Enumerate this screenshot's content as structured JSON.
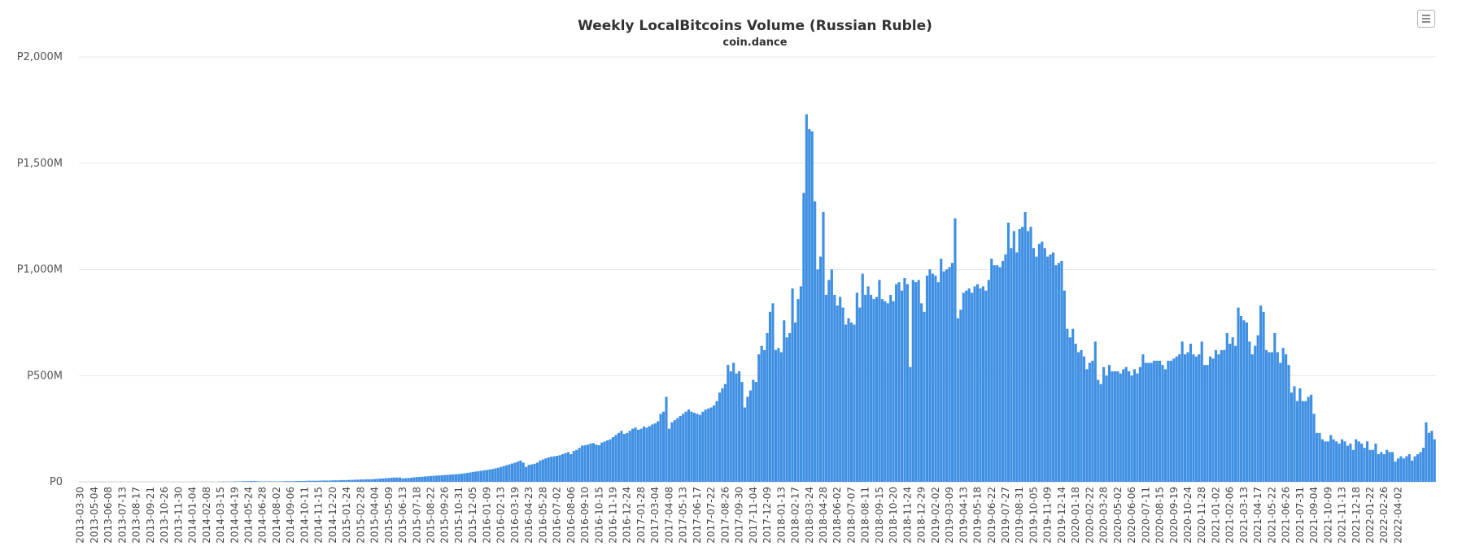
{
  "menu_icon": "hamburger-menu-icon",
  "colors": {
    "bar": "#3f8fe3",
    "bar_stroke": "#2f78c8",
    "grid": "#e6e6e6",
    "axis_text": "#555555"
  },
  "chart_data": {
    "type": "bar",
    "title": "Weekly LocalBitcoins Volume (Russian Ruble)",
    "subtitle": "coin.dance",
    "xlabel": "",
    "ylabel": "",
    "ylim": [
      0,
      2000
    ],
    "y_unit": "million RUB",
    "y_ticks": [
      {
        "value": 0,
        "label": "P0"
      },
      {
        "value": 500,
        "label": "P500M"
      },
      {
        "value": 1000,
        "label": "P1,000M"
      },
      {
        "value": 1500,
        "label": "P1,500M"
      },
      {
        "value": 2000,
        "label": "P2,000M"
      }
    ],
    "grid": true,
    "legend": "none",
    "x_tick_labels": [
      "2013-03-30",
      "2013-05-04",
      "2013-06-08",
      "2013-07-13",
      "2013-08-17",
      "2013-09-21",
      "2013-10-26",
      "2013-11-30",
      "2014-01-04",
      "2014-02-08",
      "2014-03-15",
      "2014-04-19",
      "2014-05-24",
      "2014-06-28",
      "2014-08-02",
      "2014-09-06",
      "2014-10-11",
      "2014-11-15",
      "2014-12-20",
      "2015-01-24",
      "2015-02-28",
      "2015-04-04",
      "2015-05-09",
      "2015-06-13",
      "2015-07-18",
      "2015-08-22",
      "2015-09-26",
      "2015-10-31",
      "2015-12-05",
      "2016-01-09",
      "2016-02-13",
      "2016-03-19",
      "2016-04-23",
      "2016-05-28",
      "2016-07-02",
      "2016-08-06",
      "2016-09-10",
      "2016-10-15",
      "2016-11-19",
      "2016-12-24",
      "2017-01-28",
      "2017-03-04",
      "2017-04-08",
      "2017-05-13",
      "2017-06-17",
      "2017-07-22",
      "2017-08-26",
      "2017-09-30",
      "2017-11-04",
      "2017-12-09",
      "2018-01-13",
      "2018-02-17",
      "2018-03-24",
      "2018-04-28",
      "2018-06-02",
      "2018-07-07",
      "2018-08-11",
      "2018-09-15",
      "2018-10-20",
      "2018-11-24",
      "2018-12-29",
      "2019-02-02",
      "2019-03-09",
      "2019-04-13",
      "2019-05-18",
      "2019-06-22",
      "2019-07-27",
      "2019-08-31",
      "2019-10-05",
      "2019-11-09",
      "2019-12-14",
      "2020-01-18",
      "2020-02-22",
      "2020-03-28",
      "2020-05-02",
      "2020-06-06",
      "2020-07-11",
      "2020-08-15",
      "2020-09-19",
      "2020-10-24",
      "2020-11-28",
      "2021-01-02",
      "2021-02-06",
      "2021-03-13",
      "2021-04-17",
      "2021-05-22",
      "2021-06-26",
      "2021-07-31",
      "2021-09-04",
      "2021-10-09",
      "2021-11-13",
      "2021-12-18",
      "2022-01-22",
      "2022-02-26",
      "2022-04-02"
    ],
    "weeks_per_tick": 5,
    "values": [
      0,
      0,
      0,
      0,
      0,
      0,
      0,
      0,
      0,
      0,
      0,
      0,
      0,
      0,
      0,
      0,
      0,
      0,
      0,
      0,
      0,
      0,
      0,
      0,
      0,
      0,
      0,
      0,
      0,
      0,
      0,
      0,
      0,
      0,
      0,
      0,
      0,
      0,
      0,
      0,
      0,
      0,
      0,
      0,
      0,
      0,
      0,
      0,
      0,
      0,
      1,
      1,
      1,
      1,
      1,
      2,
      2,
      2,
      3,
      3,
      3,
      4,
      4,
      3,
      2,
      2,
      2,
      2,
      2,
      2,
      2,
      2,
      2,
      3,
      3,
      3,
      3,
      4,
      4,
      4,
      4,
      5,
      5,
      5,
      5,
      5,
      6,
      6,
      6,
      6,
      7,
      7,
      7,
      8,
      8,
      8,
      9,
      9,
      10,
      10,
      11,
      11,
      12,
      12,
      12,
      13,
      14,
      15,
      16,
      17,
      18,
      19,
      20,
      20,
      20,
      16,
      17,
      18,
      19,
      21,
      22,
      23,
      24,
      25,
      26,
      27,
      28,
      29,
      30,
      31,
      32,
      33,
      34,
      35,
      36,
      37,
      38,
      40,
      42,
      44,
      46,
      48,
      50,
      52,
      54,
      56,
      58,
      60,
      63,
      66,
      70,
      74,
      78,
      82,
      86,
      90,
      95,
      100,
      90,
      70,
      80,
      82,
      85,
      90,
      100,
      105,
      110,
      115,
      118,
      120,
      122,
      125,
      130,
      135,
      140,
      130,
      145,
      150,
      160,
      170,
      172,
      175,
      180,
      182,
      175,
      172,
      185,
      190,
      195,
      200,
      210,
      220,
      230,
      240,
      225,
      230,
      240,
      250,
      255,
      245,
      250,
      260,
      255,
      262,
      270,
      275,
      285,
      320,
      330,
      400,
      250,
      280,
      290,
      300,
      310,
      320,
      330,
      340,
      330,
      325,
      320,
      315,
      330,
      340,
      345,
      350,
      360,
      380,
      420,
      440,
      460,
      550,
      520,
      560,
      510,
      520,
      470,
      350,
      400,
      430,
      480,
      470,
      600,
      640,
      620,
      700,
      800,
      840,
      620,
      630,
      610,
      760,
      680,
      700,
      910,
      750,
      860,
      920,
      1360,
      1730,
      1660,
      1650,
      1320,
      1000,
      1060,
      1270,
      880,
      950,
      1000,
      880,
      830,
      870,
      820,
      740,
      770,
      750,
      740,
      890,
      820,
      980,
      880,
      920,
      880,
      860,
      870,
      950,
      860,
      850,
      840,
      880,
      850,
      930,
      940,
      900,
      960,
      930,
      540,
      950,
      940,
      950,
      840,
      800,
      970,
      1000,
      980,
      970,
      940,
      1050,
      990,
      1000,
      1010,
      1030,
      1240,
      770,
      810,
      890,
      900,
      910,
      890,
      920,
      930,
      910,
      920,
      900,
      950,
      1050,
      1020,
      1020,
      1010,
      1040,
      1070,
      1220,
      1100,
      1180,
      1080,
      1190,
      1200,
      1270,
      1180,
      1200,
      1100,
      1060,
      1120,
      1130,
      1100,
      1060,
      1070,
      1080,
      1020,
      1030,
      1040,
      900,
      720,
      680,
      720,
      650,
      610,
      620,
      590,
      530,
      560,
      570,
      660,
      480,
      460,
      540,
      500,
      550,
      520,
      520,
      520,
      510,
      530,
      540,
      520,
      500,
      530,
      510,
      540,
      600,
      560,
      560,
      560,
      570,
      570,
      570,
      550,
      530,
      570,
      570,
      580,
      590,
      600,
      660,
      600,
      610,
      650,
      600,
      590,
      600,
      660,
      550,
      550,
      590,
      580,
      620,
      600,
      620,
      620,
      700,
      650,
      680,
      640,
      820,
      780,
      760,
      750,
      660,
      600,
      640,
      690,
      830,
      800,
      620,
      610,
      610,
      700,
      610,
      560,
      630,
      600,
      550,
      420,
      450,
      380,
      440,
      380,
      380,
      400,
      410,
      320,
      230,
      230,
      200,
      190,
      190,
      220,
      200,
      190,
      180,
      200,
      190,
      170,
      180,
      150,
      200,
      190,
      180,
      160,
      190,
      150,
      150,
      180,
      130,
      140,
      130,
      150,
      140,
      140,
      95,
      110,
      120,
      110,
      120,
      130,
      100,
      120,
      130,
      140,
      160,
      280,
      230,
      240,
      200
    ]
  }
}
